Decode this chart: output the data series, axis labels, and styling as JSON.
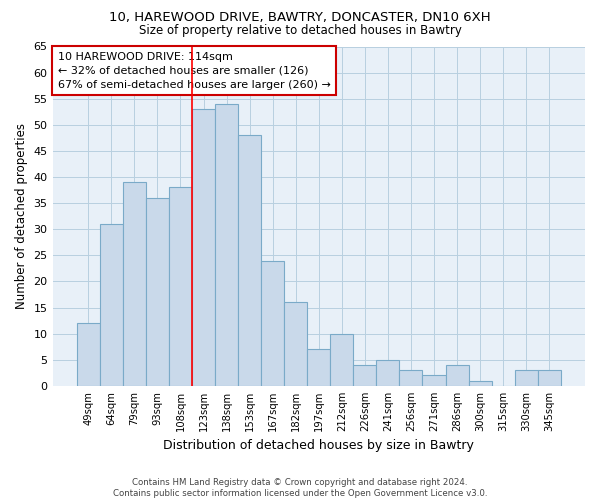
{
  "title_line1": "10, HAREWOOD DRIVE, BAWTRY, DONCASTER, DN10 6XH",
  "title_line2": "Size of property relative to detached houses in Bawtry",
  "xlabel": "Distribution of detached houses by size in Bawtry",
  "ylabel": "Number of detached properties",
  "categories": [
    "49sqm",
    "64sqm",
    "79sqm",
    "93sqm",
    "108sqm",
    "123sqm",
    "138sqm",
    "153sqm",
    "167sqm",
    "182sqm",
    "197sqm",
    "212sqm",
    "226sqm",
    "241sqm",
    "256sqm",
    "271sqm",
    "286sqm",
    "300sqm",
    "315sqm",
    "330sqm",
    "345sqm"
  ],
  "values": [
    12,
    31,
    39,
    36,
    38,
    53,
    54,
    48,
    24,
    16,
    7,
    10,
    4,
    5,
    3,
    2,
    4,
    1,
    0,
    3,
    3
  ],
  "bar_color": "#c9d9ea",
  "bar_edge_color": "#7aaac8",
  "red_line_x": 4.5,
  "annotation_line1": "10 HAREWOOD DRIVE: 114sqm",
  "annotation_line2": "← 32% of detached houses are smaller (126)",
  "annotation_line3": "67% of semi-detached houses are larger (260) →",
  "annotation_box_color": "#ffffff",
  "annotation_box_edge": "#cc0000",
  "ylim": [
    0,
    65
  ],
  "yticks": [
    0,
    5,
    10,
    15,
    20,
    25,
    30,
    35,
    40,
    45,
    50,
    55,
    60,
    65
  ],
  "grid_color": "#b8cfe0",
  "background_color": "#e8f0f8",
  "footer_line1": "Contains HM Land Registry data © Crown copyright and database right 2024.",
  "footer_line2": "Contains public sector information licensed under the Open Government Licence v3.0."
}
